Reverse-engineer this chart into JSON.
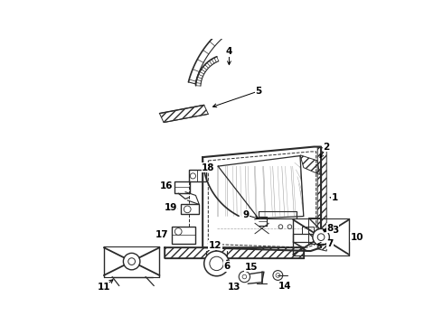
{
  "bg_color": "#ffffff",
  "line_color": "#2a2a2a",
  "figsize": [
    4.9,
    3.6
  ],
  "dpi": 100,
  "xlim": [
    0,
    490
  ],
  "ylim": [
    0,
    360
  ]
}
